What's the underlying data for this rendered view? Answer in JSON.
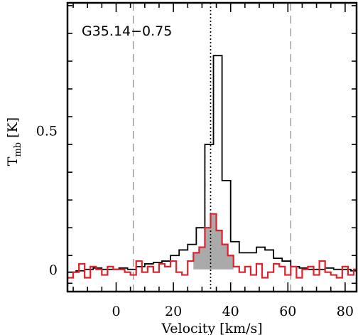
{
  "chart_data": {
    "type": "line",
    "title": "G35.14−0.75",
    "xlabel": "Velocity [km/s]",
    "ylabel": "T",
    "ylabel_sub": "mb",
    "ylabel_unit": " [K]",
    "xlim": [
      -17,
      84
    ],
    "ylim": [
      -0.08,
      0.96
    ],
    "xticks": [
      0,
      20,
      40,
      60,
      80
    ],
    "xtick_labels": [
      "0",
      "20",
      "40",
      "60",
      "80"
    ],
    "yticks": [
      0,
      0.5
    ],
    "ytick_labels": [
      "0",
      "0.5"
    ],
    "vlines_dashed": [
      6,
      61
    ],
    "vline_dotted": 33,
    "series": [
      {
        "color": "#000000",
        "style": "step",
        "x": [
          -17,
          -14,
          -11,
          -8,
          -5,
          -2,
          1,
          4,
          7,
          10,
          13,
          16,
          19,
          22,
          25,
          28,
          31,
          34,
          37,
          40,
          43,
          46,
          49,
          52,
          55,
          58,
          61,
          64,
          67,
          70,
          73,
          76,
          79,
          82
        ],
        "y": [
          -0.01,
          -0.005,
          0.0,
          0.005,
          0.0,
          0.0,
          0.005,
          0.0,
          0.01,
          0.02,
          0.025,
          0.03,
          0.05,
          0.07,
          0.09,
          0.15,
          0.45,
          0.77,
          0.32,
          0.1,
          0.06,
          0.06,
          0.08,
          0.07,
          0.04,
          0.03,
          0.01,
          0.005,
          0.0,
          0.0,
          0.005,
          0.0,
          0.0,
          -0.005
        ]
      },
      {
        "color": "#e0202a",
        "style": "step",
        "x": [
          -17,
          -15,
          -13,
          -11,
          -9,
          -7,
          -5,
          -3,
          -1,
          1,
          3,
          5,
          7,
          9,
          11,
          13,
          15,
          17,
          19,
          21,
          23,
          25,
          27,
          29,
          31,
          33,
          35,
          37,
          39,
          41,
          43,
          45,
          47,
          49,
          51,
          53,
          55,
          57,
          59,
          61,
          63,
          65,
          67,
          69,
          71,
          73,
          75,
          77,
          79,
          81,
          83
        ],
        "y": [
          -0.03,
          -0.01,
          0.02,
          -0.03,
          0.01,
          0.0,
          -0.02,
          0.01,
          0.0,
          0.0,
          -0.01,
          -0.02,
          0.03,
          -0.01,
          0.01,
          -0.01,
          0.02,
          0.01,
          0.03,
          -0.01,
          -0.02,
          0.03,
          0.06,
          0.08,
          0.15,
          0.2,
          0.14,
          0.09,
          0.05,
          0.01,
          -0.01,
          0.01,
          -0.02,
          0.02,
          -0.03,
          -0.01,
          0.02,
          0.01,
          -0.02,
          0.01,
          -0.03,
          0.0,
          0.01,
          -0.02,
          0.03,
          -0.01,
          -0.02,
          -0.03,
          0.01,
          -0.02,
          0.0
        ]
      }
    ],
    "shaded_region": {
      "x_from": 27,
      "x_to": 41,
      "series_index": 1,
      "color": "#aaaaaa"
    }
  }
}
